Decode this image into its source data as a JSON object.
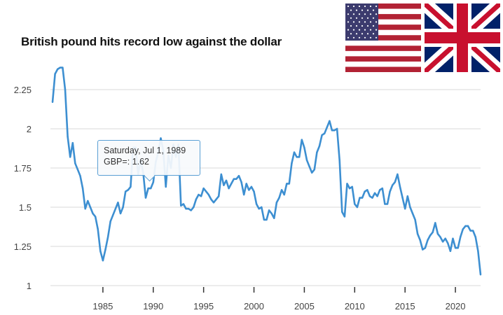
{
  "chart_data": {
    "type": "line",
    "title": "British pound hits record low against the dollar",
    "xlabel": "",
    "ylabel": "",
    "xlim": [
      1980,
      2022.5
    ],
    "ylim": [
      1,
      2.4
    ],
    "x_ticks": [
      "1985",
      "1990",
      "1995",
      "2000",
      "2005",
      "2010",
      "2015",
      "2020"
    ],
    "y_ticks": [
      "1",
      "1.25",
      "1.5",
      "1.75",
      "2",
      "2.25"
    ],
    "grid": "horizontal",
    "line_color": "#3d8fd1",
    "tooltip": {
      "date": "Saturday, Jul 1, 1989",
      "label": "GBP=: 1.62"
    },
    "series": [
      {
        "x": [
          1980.0,
          1980.25,
          1980.5,
          1980.75,
          1981.0,
          1981.25,
          1981.5,
          1981.75,
          1982.0,
          1982.25,
          1982.5,
          1982.75,
          1983.0,
          1983.25,
          1983.5,
          1983.75,
          1984.0,
          1984.25,
          1984.5,
          1984.75,
          1985.0,
          1985.25,
          1985.5,
          1985.75,
          1986.0,
          1986.25,
          1986.5,
          1986.75,
          1987.0,
          1987.25,
          1987.5,
          1987.75,
          1988.0,
          1988.25,
          1988.5,
          1988.75,
          1989.0,
          1989.25,
          1989.5,
          1989.75,
          1990.0,
          1990.25,
          1990.5,
          1990.75,
          1991.0,
          1991.25,
          1991.5,
          1991.75,
          1992.0,
          1992.25,
          1992.5,
          1992.75,
          1993.0,
          1993.25,
          1993.5,
          1993.75,
          1994.0,
          1994.25,
          1994.5,
          1994.75,
          1995.0,
          1995.25,
          1995.5,
          1995.75,
          1996.0,
          1996.25,
          1996.5,
          1996.75,
          1997.0,
          1997.25,
          1997.5,
          1997.75,
          1998.0,
          1998.25,
          1998.5,
          1998.75,
          1999.0,
          1999.25,
          1999.5,
          1999.75,
          2000.0,
          2000.25,
          2000.5,
          2000.75,
          2001.0,
          2001.25,
          2001.5,
          2001.75,
          2002.0,
          2002.25,
          2002.5,
          2002.75,
          2003.0,
          2003.25,
          2003.5,
          2003.75,
          2004.0,
          2004.25,
          2004.5,
          2004.75,
          2005.0,
          2005.25,
          2005.5,
          2005.75,
          2006.0,
          2006.25,
          2006.5,
          2006.75,
          2007.0,
          2007.25,
          2007.5,
          2007.75,
          2008.0,
          2008.25,
          2008.5,
          2008.75,
          2009.0,
          2009.25,
          2009.5,
          2009.75,
          2010.0,
          2010.25,
          2010.5,
          2010.75,
          2011.0,
          2011.25,
          2011.5,
          2011.75,
          2012.0,
          2012.25,
          2012.5,
          2012.75,
          2013.0,
          2013.25,
          2013.5,
          2013.75,
          2014.0,
          2014.25,
          2014.5,
          2014.75,
          2015.0,
          2015.25,
          2015.5,
          2015.75,
          2016.0,
          2016.25,
          2016.5,
          2016.75,
          2017.0,
          2017.25,
          2017.5,
          2017.75,
          2018.0,
          2018.25,
          2018.5,
          2018.75,
          2019.0,
          2019.25,
          2019.5,
          2019.75,
          2020.0,
          2020.25,
          2020.5,
          2020.75,
          2021.0,
          2021.25,
          2021.5,
          2021.75,
          2022.0,
          2022.25,
          2022.5
        ],
        "values": [
          2.17,
          2.35,
          2.38,
          2.39,
          2.39,
          2.25,
          1.95,
          1.82,
          1.91,
          1.78,
          1.74,
          1.7,
          1.62,
          1.49,
          1.54,
          1.5,
          1.46,
          1.44,
          1.36,
          1.22,
          1.16,
          1.23,
          1.31,
          1.41,
          1.45,
          1.49,
          1.53,
          1.46,
          1.5,
          1.6,
          1.61,
          1.63,
          1.88,
          1.88,
          1.71,
          1.8,
          1.72,
          1.56,
          1.62,
          1.62,
          1.66,
          1.79,
          1.85,
          1.94,
          1.86,
          1.63,
          1.83,
          1.75,
          1.9,
          1.82,
          1.9,
          1.51,
          1.52,
          1.49,
          1.49,
          1.48,
          1.5,
          1.55,
          1.58,
          1.57,
          1.62,
          1.6,
          1.58,
          1.55,
          1.53,
          1.55,
          1.57,
          1.71,
          1.64,
          1.67,
          1.62,
          1.65,
          1.68,
          1.68,
          1.7,
          1.66,
          1.58,
          1.65,
          1.61,
          1.63,
          1.6,
          1.52,
          1.49,
          1.5,
          1.42,
          1.42,
          1.48,
          1.46,
          1.43,
          1.53,
          1.56,
          1.61,
          1.58,
          1.65,
          1.65,
          1.78,
          1.85,
          1.82,
          1.82,
          1.93,
          1.88,
          1.8,
          1.76,
          1.72,
          1.74,
          1.85,
          1.89,
          1.96,
          1.97,
          2.01,
          2.05,
          1.99,
          1.99,
          2.0,
          1.8,
          1.47,
          1.44,
          1.65,
          1.62,
          1.63,
          1.52,
          1.5,
          1.56,
          1.56,
          1.6,
          1.61,
          1.57,
          1.56,
          1.59,
          1.57,
          1.61,
          1.62,
          1.52,
          1.52,
          1.6,
          1.64,
          1.66,
          1.71,
          1.63,
          1.56,
          1.49,
          1.57,
          1.5,
          1.46,
          1.42,
          1.33,
          1.29,
          1.23,
          1.24,
          1.29,
          1.32,
          1.34,
          1.4,
          1.33,
          1.31,
          1.28,
          1.3,
          1.27,
          1.22,
          1.3,
          1.24,
          1.24,
          1.31,
          1.36,
          1.38,
          1.38,
          1.35,
          1.35,
          1.31,
          1.22,
          1.07
        ]
      }
    ]
  },
  "flags": [
    {
      "icon": "us-flag-icon"
    },
    {
      "icon": "uk-flag-icon"
    }
  ]
}
